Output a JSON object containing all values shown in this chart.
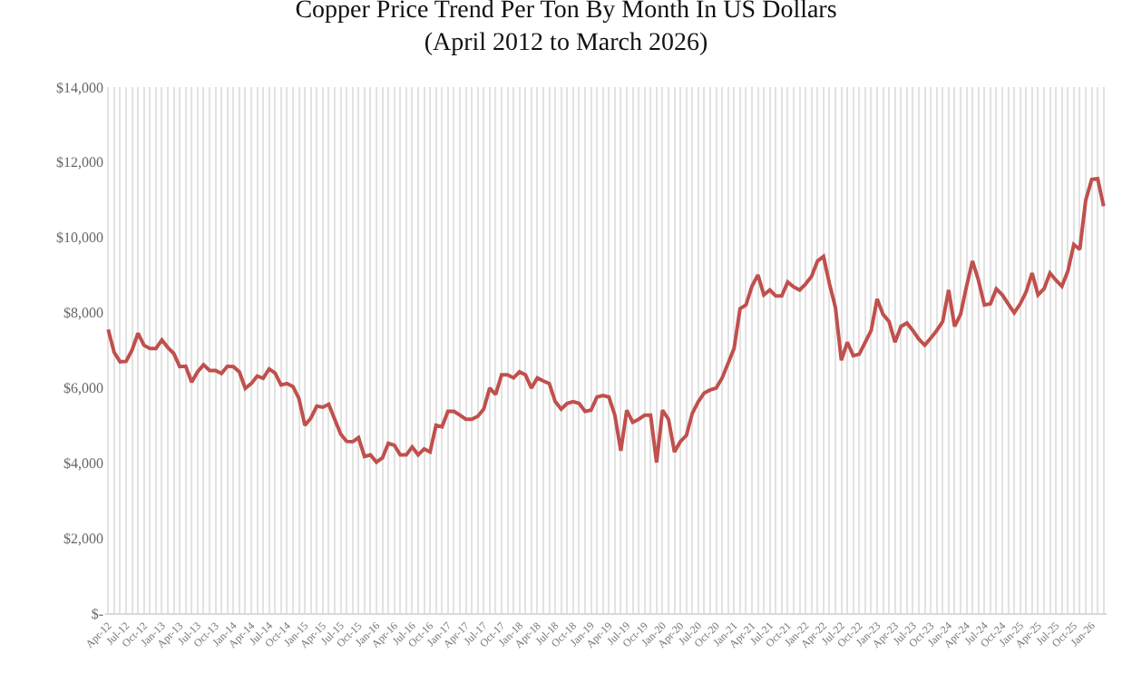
{
  "chart_data": {
    "type": "line",
    "title": "Copper Price Trend Per Ton By Month In US Dollars\n(April 2012 to March 2026)",
    "categories": [
      "Apr-12",
      null,
      null,
      "Jul-12",
      null,
      null,
      "Oct-12",
      null,
      null,
      "Jan-13",
      null,
      null,
      "Apr-13",
      null,
      null,
      "Jul-13",
      null,
      null,
      "Oct-13",
      null,
      null,
      "Jan-14",
      null,
      null,
      "Apr-14",
      null,
      null,
      "Jul-14",
      null,
      null,
      "Oct-14",
      null,
      null,
      "Jan-15",
      null,
      null,
      "Apr-15",
      null,
      null,
      "Jul-15",
      null,
      null,
      "Oct-15",
      null,
      null,
      "Jan-16",
      null,
      null,
      "Apr-16",
      null,
      null,
      "Jul-16",
      null,
      null,
      "Oct-16",
      null,
      null,
      "Jan-17",
      null,
      null,
      "Apr-17",
      null,
      null,
      "Jul-17",
      null,
      null,
      "Oct-17",
      null,
      null,
      "Jan-18",
      null,
      null,
      "Apr-18",
      null,
      null,
      "Jul-18",
      null,
      null,
      "Oct-18",
      null,
      null,
      "Jan-19",
      null,
      null,
      "Apr-19",
      null,
      null,
      "Jul-19",
      null,
      null,
      "Oct-19",
      null,
      null,
      "Jan-20",
      null,
      null,
      "Apr-20",
      null,
      null,
      "Jul-20",
      null,
      null,
      "Oct-20",
      null,
      null,
      "Jan-21",
      null,
      null,
      "Apr-21",
      null,
      null,
      "Jul-21",
      null,
      null,
      "Oct-21",
      null,
      null,
      "Jan-22",
      null,
      null,
      "Apr-22",
      null,
      null,
      "Jul-22",
      null,
      null,
      "Oct-22",
      null,
      null,
      "Jan-23",
      null,
      null,
      "Apr-23",
      null,
      null,
      "Jul-23",
      null,
      null,
      "Oct-23",
      null,
      null,
      "Jan-24",
      null,
      null,
      "Apr-24",
      null,
      null,
      "Jul-24",
      null,
      null,
      "Oct-24",
      null,
      null,
      "Jan-25",
      null,
      null,
      "Apr-25",
      null,
      null,
      "Jul-25",
      null,
      null,
      "Oct-25",
      null,
      null,
      "Jan-26",
      null,
      null
    ],
    "series": [
      {
        "color": "#c0504d",
        "values": [
          7550,
          6940,
          6690,
          6700,
          7000,
          7450,
          7130,
          7040,
          7040,
          7270,
          7070,
          6910,
          6560,
          6570,
          6150,
          6420,
          6610,
          6460,
          6460,
          6380,
          6570,
          6560,
          6420,
          5980,
          6110,
          6310,
          6250,
          6500,
          6390,
          6070,
          6110,
          6030,
          5710,
          5000,
          5190,
          5510,
          5480,
          5560,
          5160,
          4770,
          4570,
          4560,
          4670,
          4170,
          4210,
          4020,
          4130,
          4520,
          4470,
          4210,
          4210,
          4420,
          4210,
          4370,
          4290,
          5000,
          4960,
          5370,
          5370,
          5270,
          5160,
          5160,
          5240,
          5430,
          5990,
          5820,
          6340,
          6340,
          6260,
          6420,
          6340,
          5990,
          6260,
          6180,
          6110,
          5630,
          5430,
          5580,
          5630,
          5580,
          5370,
          5400,
          5750,
          5790,
          5750,
          5270,
          4320,
          5400,
          5080,
          5160,
          5270,
          5270,
          4010,
          5400,
          5160,
          4290,
          4570,
          4730,
          5320,
          5630,
          5860,
          5940,
          5990,
          6260,
          6650,
          7040,
          8100,
          8200,
          8700,
          9000,
          8470,
          8600,
          8440,
          8440,
          8810,
          8680,
          8600,
          8760,
          8960,
          9370,
          9490,
          8770,
          8140,
          6730,
          7210,
          6850,
          6890,
          7210,
          7520,
          8360,
          7950,
          7760,
          7210,
          7630,
          7720,
          7520,
          7290,
          7130,
          7320,
          7520,
          7760,
          8600,
          7630,
          7950,
          8700,
          9370,
          8860,
          8200,
          8230,
          8630,
          8470,
          8230,
          7990,
          8230,
          8550,
          9050,
          8470,
          8630,
          9050,
          8860,
          8700,
          9100,
          9810,
          9680,
          10990,
          11540,
          11560,
          10830
        ]
      }
    ],
    "ylim": [
      0,
      14000
    ],
    "yticks": [
      {
        "value": 0,
        "label": "$-"
      },
      {
        "value": 2000,
        "label": "$2,000"
      },
      {
        "value": 4000,
        "label": "$4,000"
      },
      {
        "value": 6000,
        "label": "$6,000"
      },
      {
        "value": 8000,
        "label": "$8,000"
      },
      {
        "value": 10000,
        "label": "$10,000"
      },
      {
        "value": 12000,
        "label": "$12,000"
      },
      {
        "value": 14000,
        "label": "$14,000"
      }
    ],
    "grid": "x",
    "marker": "none",
    "line_style": "solid"
  }
}
